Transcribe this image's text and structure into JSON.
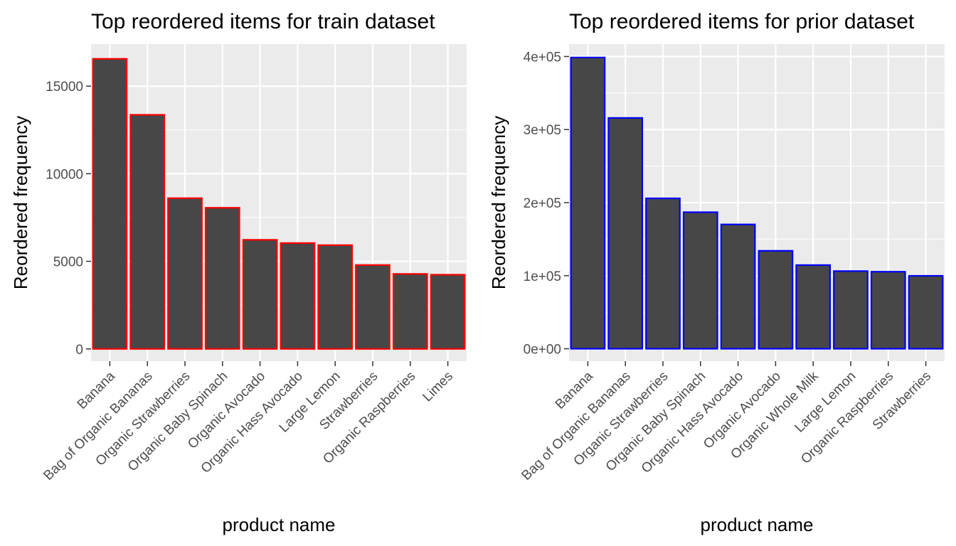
{
  "chart_data": [
    {
      "type": "bar",
      "title": "Top reordered items for train dataset",
      "xlabel": "product name",
      "ylabel": "Reordered frequency",
      "categories": [
        "Banana",
        "Bag of Organic Bananas",
        "Organic Strawberries",
        "Organic Baby Spinach",
        "Organic Avocado",
        "Organic Hass Avocado",
        "Large Lemon",
        "Strawberries",
        "Organic Raspberries",
        "Limes"
      ],
      "values": [
        16557,
        13362,
        8603,
        8055,
        6226,
        6042,
        5923,
        4786,
        4279,
        4234
      ],
      "ylim": [
        -700,
        17400
      ],
      "yticks": [
        0,
        5000,
        10000,
        15000
      ],
      "ytick_labels": [
        "0",
        "5000",
        "10000",
        "15000"
      ],
      "bar_fill": "#474747",
      "bar_outline": "#ff0000",
      "panel_background": "#ebebeb",
      "grid": true
    },
    {
      "type": "bar",
      "title": "Top reordered items for prior dataset",
      "xlabel": "product name",
      "ylabel": "Reordered frequency",
      "categories": [
        "Banana",
        "Bag of Organic Bananas",
        "Organic Strawberries",
        "Organic Baby Spinach",
        "Organic Hass Avocado",
        "Organic Avocado",
        "Organic Whole Milk",
        "Large Lemon",
        "Organic Raspberries",
        "Strawberries"
      ],
      "values": [
        398609,
        315913,
        205845,
        186884,
        170131,
        134044,
        114510,
        106255,
        105409,
        99802
      ],
      "ylim": [
        -17000,
        417000
      ],
      "yticks": [
        0,
        100000,
        200000,
        300000,
        400000
      ],
      "ytick_labels": [
        "0e+00",
        "1e+05",
        "2e+05",
        "3e+05",
        "4e+05"
      ],
      "bar_fill": "#474747",
      "bar_outline": "#0000ff",
      "panel_background": "#ebebeb",
      "grid": true
    }
  ]
}
